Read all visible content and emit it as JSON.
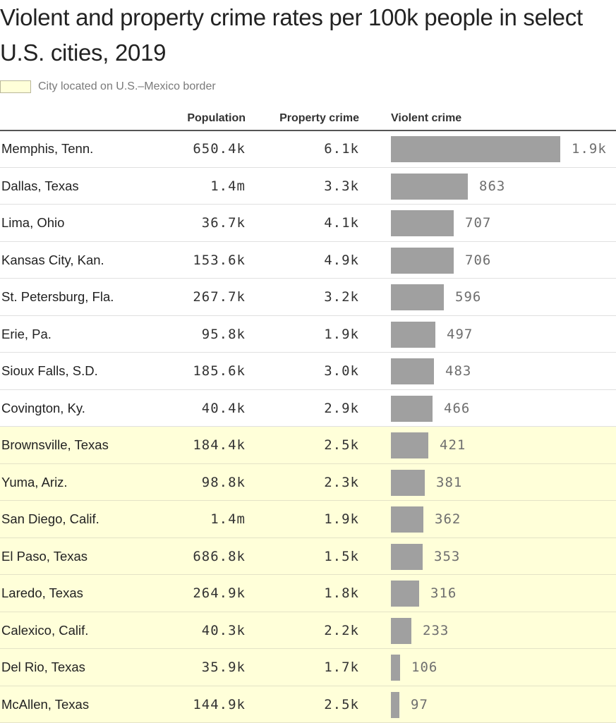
{
  "chart_data": {
    "type": "table",
    "title": "Violent and property crime rates per 100k people in select U.S. cities, 2019",
    "legend": {
      "label": "City located on U.S.–Mexico border",
      "color": "#ffffd9"
    },
    "bar_color": "#a0a0a0",
    "columns": [
      "Population",
      "Property crime",
      "Violent crime"
    ],
    "rows": [
      {
        "city": "Memphis, Tenn.",
        "population": "650.4k",
        "property_crime": "6.1k",
        "violent_crime": 1900,
        "violent_label": "1.9k",
        "border": false
      },
      {
        "city": "Dallas, Texas",
        "population": "1.4m",
        "property_crime": "3.3k",
        "violent_crime": 863,
        "violent_label": "863",
        "border": false
      },
      {
        "city": "Lima, Ohio",
        "population": "36.7k",
        "property_crime": "4.1k",
        "violent_crime": 707,
        "violent_label": "707",
        "border": false
      },
      {
        "city": "Kansas City, Kan.",
        "population": "153.6k",
        "property_crime": "4.9k",
        "violent_crime": 706,
        "violent_label": "706",
        "border": false
      },
      {
        "city": "St. Petersburg, Fla.",
        "population": "267.7k",
        "property_crime": "3.2k",
        "violent_crime": 596,
        "violent_label": "596",
        "border": false
      },
      {
        "city": "Erie, Pa.",
        "population": "95.8k",
        "property_crime": "1.9k",
        "violent_crime": 497,
        "violent_label": "497",
        "border": false
      },
      {
        "city": "Sioux Falls, S.D.",
        "population": "185.6k",
        "property_crime": "3.0k",
        "violent_crime": 483,
        "violent_label": "483",
        "border": false
      },
      {
        "city": "Covington, Ky.",
        "population": "40.4k",
        "property_crime": "2.9k",
        "violent_crime": 466,
        "violent_label": "466",
        "border": false
      },
      {
        "city": "Brownsville, Texas",
        "population": "184.4k",
        "property_crime": "2.5k",
        "violent_crime": 421,
        "violent_label": "421",
        "border": true
      },
      {
        "city": "Yuma, Ariz.",
        "population": "98.8k",
        "property_crime": "2.3k",
        "violent_crime": 381,
        "violent_label": "381",
        "border": true
      },
      {
        "city": "San Diego, Calif.",
        "population": "1.4m",
        "property_crime": "1.9k",
        "violent_crime": 362,
        "violent_label": "362",
        "border": true
      },
      {
        "city": "El Paso, Texas",
        "population": "686.8k",
        "property_crime": "1.5k",
        "violent_crime": 353,
        "violent_label": "353",
        "border": true
      },
      {
        "city": "Laredo, Texas",
        "population": "264.9k",
        "property_crime": "1.8k",
        "violent_crime": 316,
        "violent_label": "316",
        "border": true
      },
      {
        "city": "Calexico, Calif.",
        "population": "40.3k",
        "property_crime": "2.2k",
        "violent_crime": 233,
        "violent_label": "233",
        "border": true
      },
      {
        "city": "Del Rio, Texas",
        "population": "35.9k",
        "property_crime": "1.7k",
        "violent_crime": 106,
        "violent_label": "106",
        "border": true
      },
      {
        "city": "McAllen, Texas",
        "population": "144.9k",
        "property_crime": "2.5k",
        "violent_crime": 97,
        "violent_label": "97",
        "border": true
      }
    ]
  }
}
